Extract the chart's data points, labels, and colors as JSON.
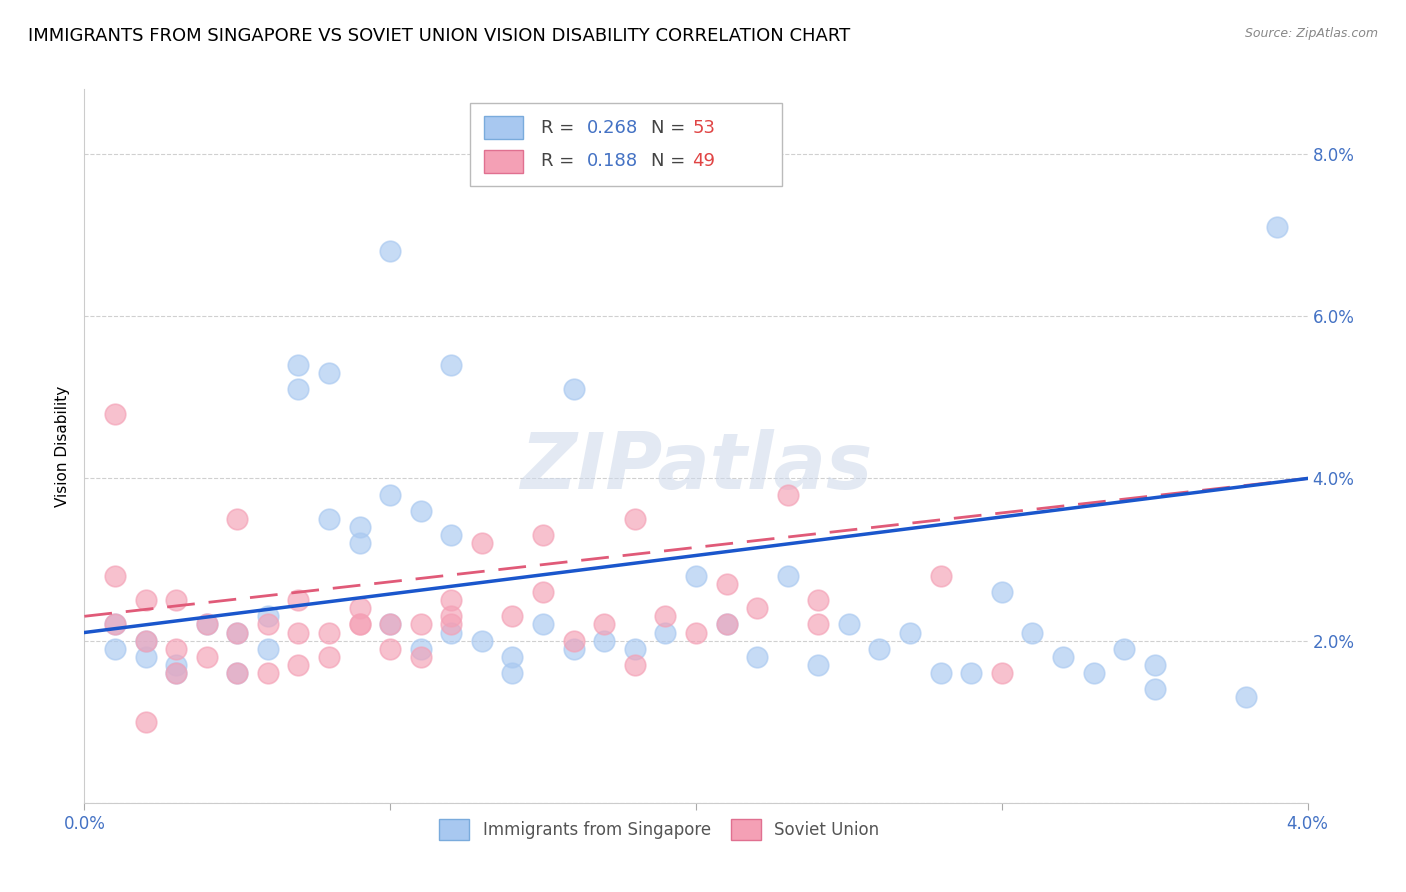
{
  "title": "IMMIGRANTS FROM SINGAPORE VS SOVIET UNION VISION DISABILITY CORRELATION CHART",
  "source": "Source: ZipAtlas.com",
  "ylabel": "Vision Disability",
  "xlim": [
    0.0,
    0.04
  ],
  "ylim": [
    0.0,
    0.088
  ],
  "watermark": "ZIPatlas",
  "series": [
    {
      "name": "Immigrants from Singapore",
      "R": 0.268,
      "N": 53,
      "color": "#a8c8f0",
      "edge_color": "#7aabdc",
      "line_color": "#1a56cc",
      "line_style": "solid",
      "x": [
        0.001,
        0.001,
        0.002,
        0.002,
        0.003,
        0.003,
        0.004,
        0.005,
        0.005,
        0.006,
        0.006,
        0.007,
        0.007,
        0.008,
        0.008,
        0.009,
        0.009,
        0.01,
        0.01,
        0.011,
        0.011,
        0.012,
        0.012,
        0.013,
        0.014,
        0.014,
        0.015,
        0.016,
        0.017,
        0.018,
        0.019,
        0.02,
        0.021,
        0.022,
        0.023,
        0.024,
        0.025,
        0.026,
        0.027,
        0.028,
        0.029,
        0.03,
        0.031,
        0.032,
        0.033,
        0.034,
        0.035,
        0.01,
        0.012,
        0.016,
        0.035,
        0.038,
        0.039
      ],
      "y": [
        0.022,
        0.019,
        0.02,
        0.018,
        0.017,
        0.016,
        0.022,
        0.021,
        0.016,
        0.023,
        0.019,
        0.051,
        0.054,
        0.053,
        0.035,
        0.034,
        0.032,
        0.038,
        0.022,
        0.019,
        0.036,
        0.033,
        0.021,
        0.02,
        0.016,
        0.018,
        0.022,
        0.019,
        0.02,
        0.019,
        0.021,
        0.028,
        0.022,
        0.018,
        0.028,
        0.017,
        0.022,
        0.019,
        0.021,
        0.016,
        0.016,
        0.026,
        0.021,
        0.018,
        0.016,
        0.019,
        0.017,
        0.068,
        0.054,
        0.051,
        0.014,
        0.013,
        0.071
      ]
    },
    {
      "name": "Soviet Union",
      "R": 0.188,
      "N": 49,
      "color": "#f4a0b5",
      "edge_color": "#e07090",
      "line_color": "#e05a78",
      "line_style": "dashed",
      "x": [
        0.001,
        0.001,
        0.002,
        0.002,
        0.003,
        0.003,
        0.004,
        0.004,
        0.005,
        0.005,
        0.006,
        0.006,
        0.007,
        0.007,
        0.008,
        0.008,
        0.009,
        0.009,
        0.01,
        0.01,
        0.011,
        0.011,
        0.012,
        0.012,
        0.013,
        0.014,
        0.015,
        0.016,
        0.017,
        0.018,
        0.019,
        0.02,
        0.021,
        0.022,
        0.023,
        0.024,
        0.003,
        0.005,
        0.007,
        0.009,
        0.012,
        0.015,
        0.018,
        0.021,
        0.024,
        0.028,
        0.03,
        0.001,
        0.002
      ],
      "y": [
        0.028,
        0.022,
        0.025,
        0.02,
        0.019,
        0.016,
        0.022,
        0.018,
        0.021,
        0.016,
        0.022,
        0.016,
        0.021,
        0.017,
        0.021,
        0.018,
        0.022,
        0.024,
        0.022,
        0.019,
        0.022,
        0.018,
        0.022,
        0.025,
        0.032,
        0.023,
        0.033,
        0.02,
        0.022,
        0.017,
        0.023,
        0.021,
        0.022,
        0.024,
        0.038,
        0.025,
        0.025,
        0.035,
        0.025,
        0.022,
        0.023,
        0.026,
        0.035,
        0.027,
        0.022,
        0.028,
        0.016,
        0.048,
        0.01
      ]
    }
  ],
  "regression": [
    {
      "x_start": 0.0,
      "y_start": 0.021,
      "x_end": 0.04,
      "y_end": 0.04
    },
    {
      "x_start": 0.0,
      "y_start": 0.023,
      "x_end": 0.04,
      "y_end": 0.04
    }
  ],
  "axis_color": "#4472c4",
  "tick_label_color": "#4472c4",
  "title_fontsize": 13,
  "axis_label_fontsize": 11,
  "tick_fontsize": 12,
  "background_color": "#ffffff",
  "grid_color": "#d0d0d0"
}
